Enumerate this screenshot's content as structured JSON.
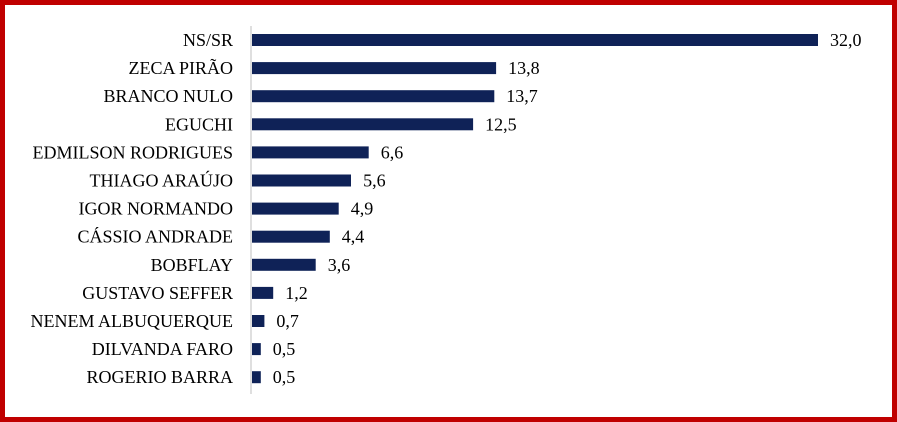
{
  "chart_data": {
    "type": "bar",
    "orientation": "horizontal",
    "categories": [
      "NS/SR",
      "ZECA PIRÃO",
      "BRANCO NULO",
      "EGUCHI",
      "EDMILSON RODRIGUES",
      "THIAGO ARAÚJO",
      "IGOR NORMANDO",
      "CÁSSIO ANDRADE",
      "BOBFLAY",
      "GUSTAVO SEFFER",
      "NENEM ALBUQUERQUE",
      "DILVANDA FARO",
      "ROGERIO BARRA"
    ],
    "values": [
      32.0,
      13.8,
      13.7,
      12.5,
      6.6,
      5.6,
      4.9,
      4.4,
      3.6,
      1.2,
      0.7,
      0.5,
      0.5
    ],
    "value_labels": [
      "32,0",
      "13,8",
      "13,7",
      "12,5",
      "6,6",
      "5,6",
      "4,9",
      "4,4",
      "3,6",
      "1,2",
      "0,7",
      "0,5",
      "0,5"
    ],
    "xlim": [
      0,
      32.0
    ],
    "grid": false,
    "legend": "none",
    "bar_color": "#0f2257",
    "frame_color": "#c00000"
  }
}
